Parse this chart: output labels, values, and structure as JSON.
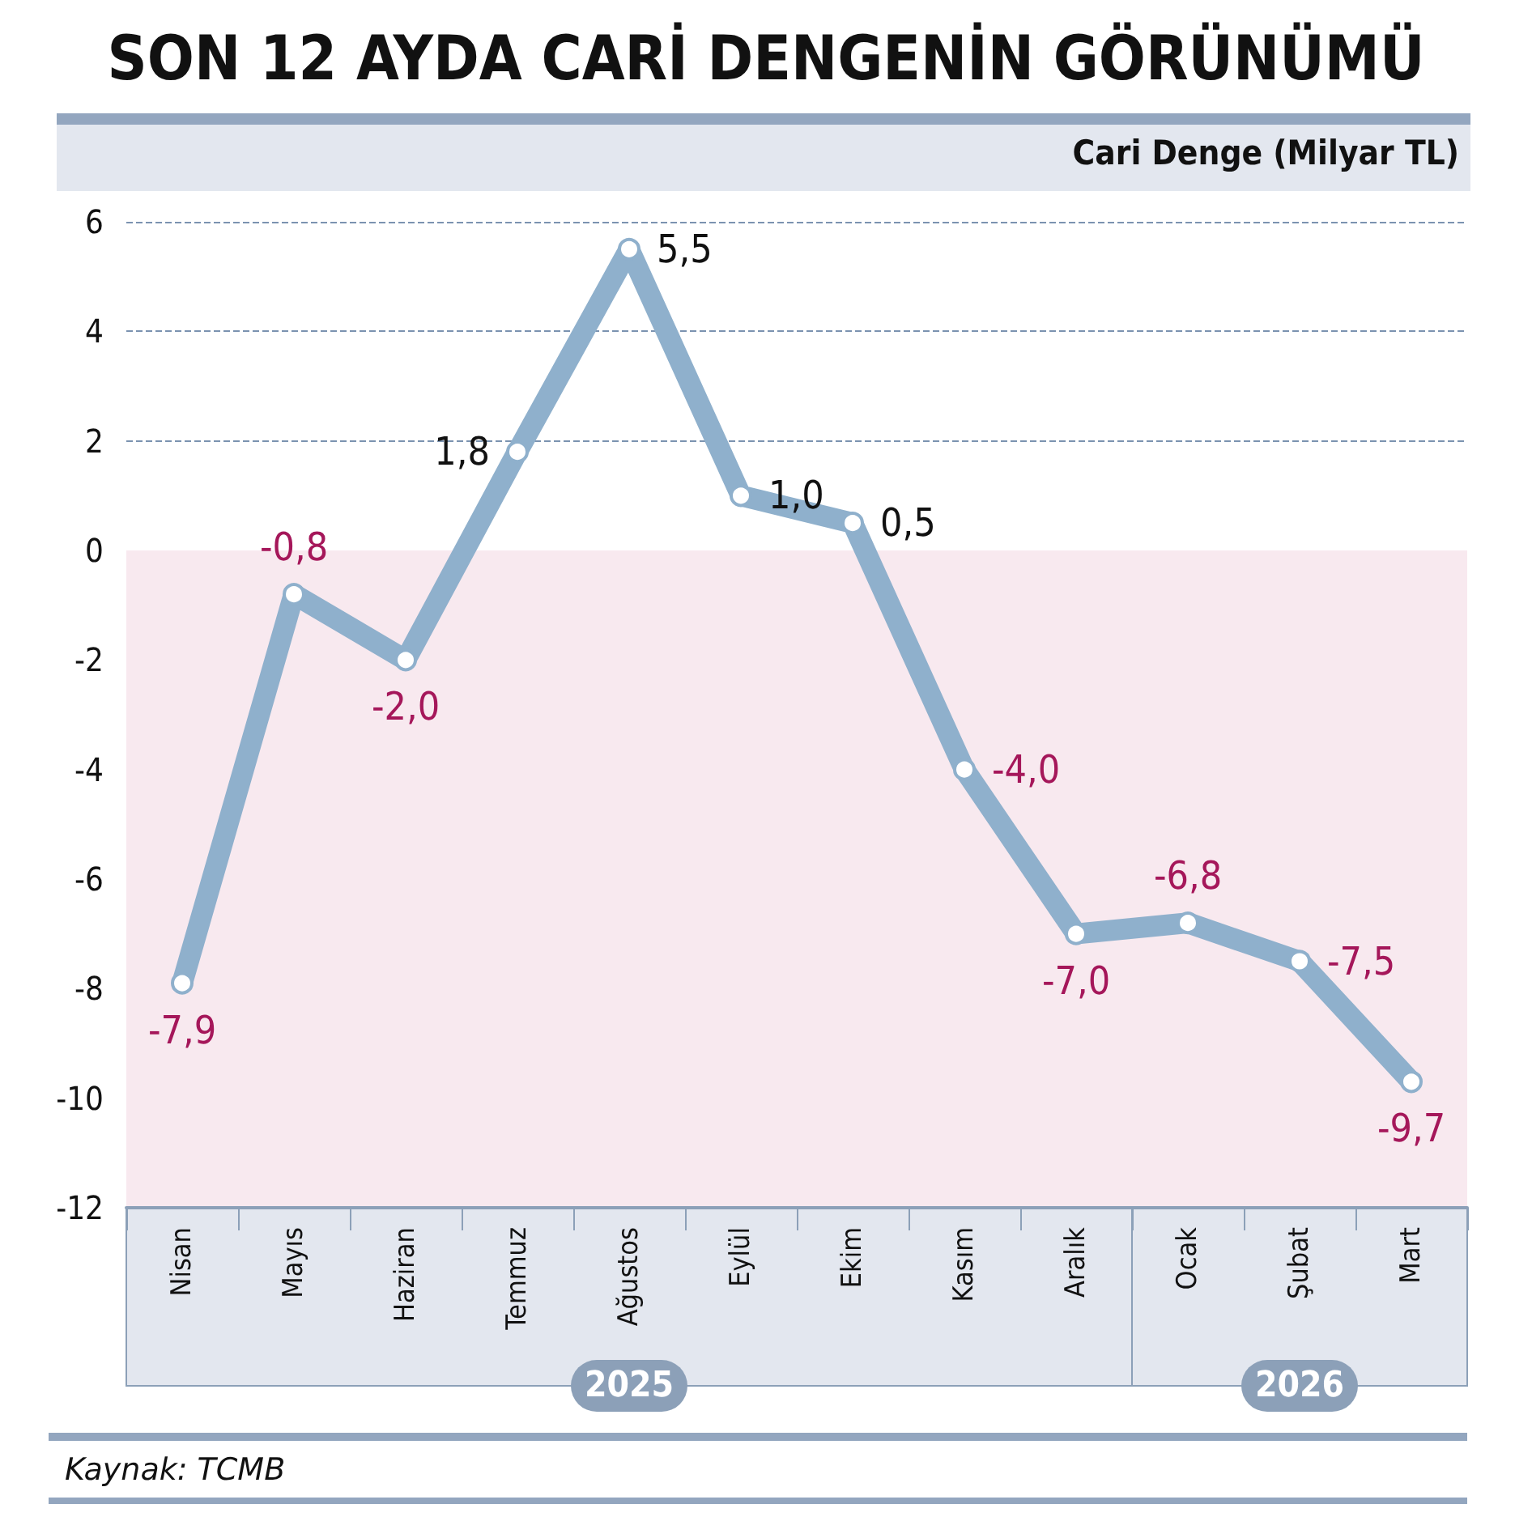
{
  "chart_data": {
    "type": "line",
    "title": "SON 12 AYDA CARİ DENGENİN GÖRÜNÜMÜ",
    "ylabel": "Cari Denge (Milyar TL)",
    "categories": [
      "Nisan",
      "Mayıs",
      "Haziran",
      "Temmuz",
      "Ağustos",
      "Eylül",
      "Ekim",
      "Kasım",
      "Aralık",
      "Ocak",
      "Şubat",
      "Mart"
    ],
    "series": [
      {
        "color": "#8fb0cc",
        "values": [
          -7.9,
          -0.8,
          -2.0,
          1.8,
          5.5,
          1.0,
          0.5,
          -4.0,
          -7.0,
          -6.8,
          -7.5,
          -9.7
        ],
        "value_labels": [
          "-7,9",
          "-0,8",
          "-2,0",
          "1,8",
          "5,5",
          "1,0",
          "0,5",
          "-4,0",
          "-7,0",
          "-6,8",
          "-7,5",
          "-9,7"
        ]
      }
    ],
    "ylim": [
      -12,
      6
    ],
    "yticks": [
      -12,
      -10,
      -8,
      -6,
      -4,
      -2,
      0,
      2,
      4,
      6
    ],
    "grid": "y",
    "marker": "circle",
    "line_style": "solid",
    "bands": [
      {
        "axis": "y",
        "from": -12,
        "to": 0,
        "color": "#f8e9ef"
      }
    ],
    "annotations": [
      "2025",
      "2026",
      "Kaynak: TCMB"
    ]
  }
}
